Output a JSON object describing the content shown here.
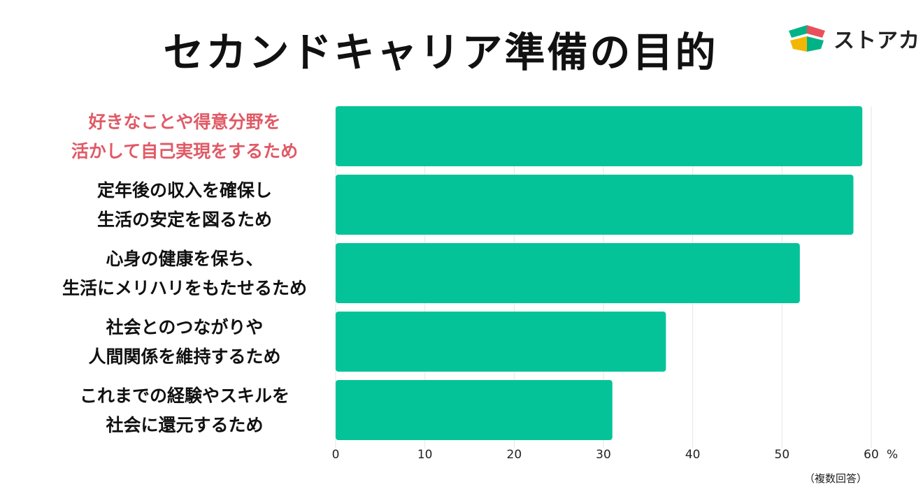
{
  "title": "セカンドキャリア準備の目的",
  "logo": {
    "text": "ストアカ",
    "icon": "stoaka-logo-icon",
    "colors": [
      "#e8505b",
      "#00b386",
      "#f2b705"
    ]
  },
  "note": "（複数回答）",
  "colors": {
    "bar": "#05c399",
    "highlight_label": "#e05a66",
    "label": "#111111",
    "grid": "#e6e6e6"
  },
  "chart_data": {
    "type": "bar",
    "orientation": "horizontal",
    "title": "セカンドキャリア準備の目的",
    "categories": [
      [
        "好きなことや得意分野を",
        "活かして自己実現をするため"
      ],
      [
        "定年後の収入を確保し",
        "生活の安定を図るため"
      ],
      [
        "心身の健康を保ち、",
        "生活にメリハリをもたせるため"
      ],
      [
        "社会とのつながりや",
        "人間関係を維持するため"
      ],
      [
        "これまでの経験やスキルを",
        "社会に還元するため"
      ]
    ],
    "values": [
      59,
      58,
      52,
      37,
      31
    ],
    "highlight_index": 0,
    "xlim": [
      0,
      60
    ],
    "xticks": [
      "0",
      "10",
      "20",
      "30",
      "40",
      "50",
      "60"
    ],
    "x_unit": "%",
    "grid": true
  }
}
